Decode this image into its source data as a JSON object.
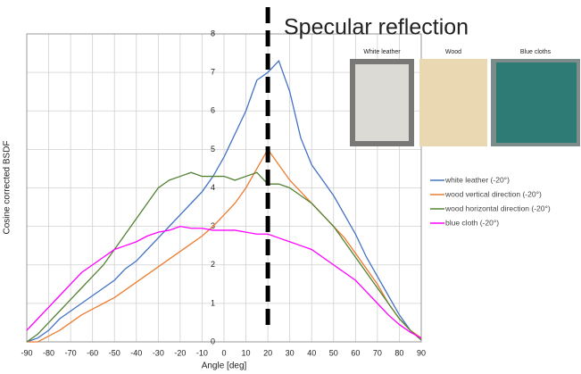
{
  "chart_data": {
    "type": "line",
    "annotation": "Specular reflection",
    "specular_angle": 20,
    "x_label": "Angle [deg]",
    "y_label": "Cosine corrected BSDF",
    "xlim": [
      -90,
      90
    ],
    "ylim": [
      0,
      8
    ],
    "xticks": [
      -90,
      -80,
      -70,
      -60,
      -50,
      -40,
      -30,
      -20,
      -10,
      0,
      10,
      20,
      30,
      40,
      50,
      60,
      70,
      80,
      90
    ],
    "yticks": [
      0,
      1,
      2,
      3,
      4,
      5,
      6,
      7,
      8
    ],
    "grid": true,
    "legend": "right",
    "image_labels": [
      "White leather",
      "Wood",
      "Blue cloths"
    ],
    "x": [
      -90,
      -85,
      -80,
      -75,
      -70,
      -65,
      -60,
      -55,
      -50,
      -45,
      -40,
      -35,
      -30,
      -25,
      -20,
      -15,
      -10,
      -5,
      0,
      5,
      10,
      15,
      20,
      25,
      30,
      35,
      40,
      45,
      50,
      55,
      60,
      65,
      70,
      75,
      80,
      85,
      90
    ],
    "series": [
      {
        "name": "white leather (-20°)",
        "color": "#4472c4",
        "values": [
          0,
          0.1,
          0.3,
          0.6,
          0.8,
          1.0,
          1.2,
          1.4,
          1.6,
          1.9,
          2.1,
          2.4,
          2.7,
          3.0,
          3.3,
          3.6,
          3.9,
          4.3,
          4.8,
          5.4,
          6.0,
          6.8,
          7.0,
          7.3,
          6.5,
          5.3,
          4.6,
          4.2,
          3.8,
          3.3,
          2.8,
          2.2,
          1.7,
          1.2,
          0.7,
          0.3,
          0.05
        ]
      },
      {
        "name": "wood vertical direction (-20°)",
        "color": "#ed7d31",
        "values": [
          0,
          0,
          0.15,
          0.3,
          0.5,
          0.7,
          0.85,
          1.0,
          1.15,
          1.35,
          1.55,
          1.75,
          1.95,
          2.15,
          2.35,
          2.55,
          2.75,
          3.0,
          3.3,
          3.6,
          4.0,
          4.5,
          5.0,
          4.6,
          4.2,
          3.9,
          3.6,
          3.3,
          3.0,
          2.7,
          2.3,
          1.9,
          1.5,
          1.0,
          0.6,
          0.3,
          0.1
        ]
      },
      {
        "name": "wood horizontal direction (-20°)",
        "color": "#548235",
        "values": [
          0,
          0.2,
          0.5,
          0.8,
          1.1,
          1.4,
          1.7,
          2.0,
          2.4,
          2.8,
          3.2,
          3.6,
          4.0,
          4.2,
          4.3,
          4.4,
          4.3,
          4.3,
          4.3,
          4.2,
          4.3,
          4.4,
          4.1,
          4.1,
          4.0,
          3.8,
          3.6,
          3.3,
          3.0,
          2.6,
          2.2,
          1.8,
          1.4,
          1.0,
          0.6,
          0.3,
          0.05
        ]
      },
      {
        "name": "blue cloth (-20°)",
        "color": "#ff00ff",
        "values": [
          0.3,
          0.6,
          0.9,
          1.2,
          1.5,
          1.8,
          2.0,
          2.2,
          2.4,
          2.5,
          2.6,
          2.75,
          2.85,
          2.9,
          3.0,
          2.95,
          2.95,
          2.9,
          2.9,
          2.9,
          2.85,
          2.8,
          2.8,
          2.7,
          2.6,
          2.5,
          2.4,
          2.2,
          2.0,
          1.8,
          1.6,
          1.3,
          1.0,
          0.7,
          0.45,
          0.25,
          0.1
        ]
      }
    ]
  }
}
